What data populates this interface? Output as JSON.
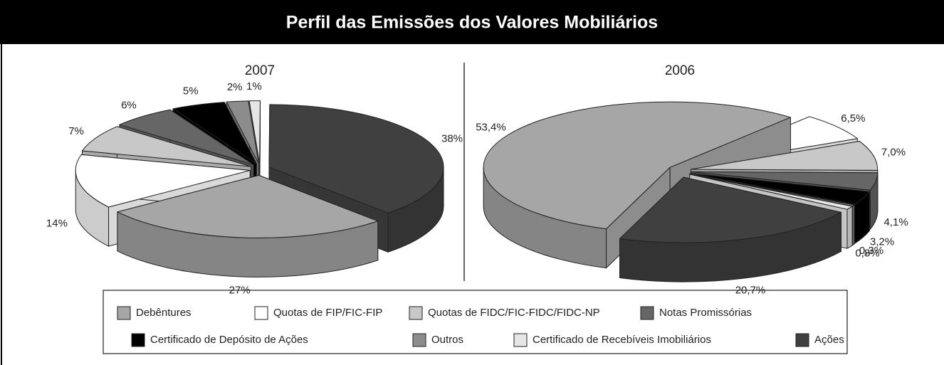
{
  "title": "Perfil das Emissões dos Valores Mobiliários",
  "legend": [
    {
      "name": "Debêntures",
      "color": "#a6a6a6"
    },
    {
      "name": "Quotas de FIP/FIC-FIP",
      "color": "#ffffff"
    },
    {
      "name": "Quotas de FIDC/FIC-FIDC/FIDC-NP",
      "color": "#c8c8c8"
    },
    {
      "name": "Notas Promissórias",
      "color": "#666666"
    },
    {
      "name": "Certificado de Depósito de Ações",
      "color": "#000000"
    },
    {
      "name": "Outros",
      "color": "#8c8c8c"
    },
    {
      "name": "Certificado de Recebíveis Imobiliários",
      "color": "#e6e6e6"
    },
    {
      "name": "Ações",
      "color": "#404040"
    }
  ],
  "chart_data": [
    {
      "type": "pie",
      "title": "2007",
      "values": [
        27,
        14,
        7,
        6,
        5,
        2,
        1,
        38
      ],
      "value_labels": [
        "27%",
        "14%",
        "7%",
        "6%",
        "5%",
        "2%",
        "1%",
        "38%"
      ]
    },
    {
      "type": "pie",
      "title": "2006",
      "values": [
        53.4,
        6.5,
        7.0,
        4.1,
        3.2,
        0.3,
        0.8,
        20.7
      ],
      "value_labels": [
        "53,4%",
        "6,5%",
        "7,0%",
        "4,1%",
        "3,2%",
        "0,3%",
        "0,8%",
        "20,7%"
      ]
    }
  ]
}
